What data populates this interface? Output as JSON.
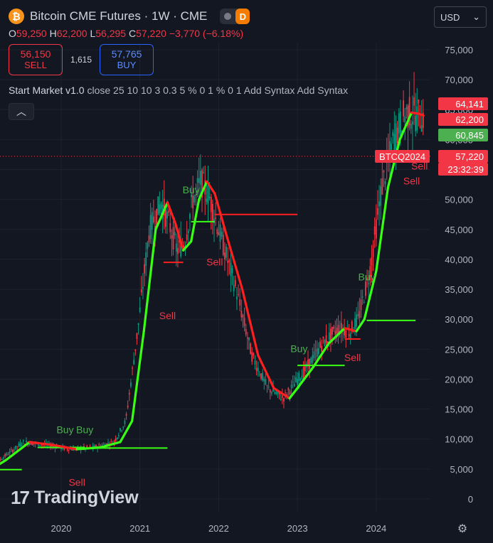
{
  "header": {
    "icon_letter": "₿",
    "title": "Bitcoin CME Futures · 1W · CME",
    "toggle_letter": "D"
  },
  "ohlc": {
    "o_label": "O",
    "o_value": "59,250",
    "h_label": "H",
    "h_value": "62,200",
    "l_label": "L",
    "l_value": "56,295",
    "c_label": "C",
    "c_value": "57,220",
    "change": "−3,770 (−6.18%)"
  },
  "trade": {
    "sell_price": "56,150",
    "sell_label": "SELL",
    "spread": "1,615",
    "buy_price": "57,765",
    "buy_label": "BUY"
  },
  "indicator": {
    "name": "Start Market v1.0",
    "params": "close 25 10 10 3 0.3 5 % 0 1 % 0 1 Add Syntax Add Syntax"
  },
  "currency": {
    "label": "USD",
    "chevron": "⌄"
  },
  "price_tags": [
    {
      "text": "64,141",
      "color": "#f23645"
    },
    {
      "text": "62,200",
      "color": "#f23645"
    },
    {
      "text": "60,845",
      "color": "#4caf50"
    },
    {
      "text": "57,220",
      "color": "#f23645"
    },
    {
      "text": "23:32:39",
      "color": "#f23645"
    }
  ],
  "symbol_tag": {
    "text": "BTCQ2024",
    "color": "#f23645"
  },
  "logo": {
    "mark": "17",
    "text": "TradingView"
  },
  "colors": {
    "up": "#089981",
    "down": "#f23645",
    "trend_up": "#39ff14",
    "trend_down": "#ff1f1f",
    "buy_text": "#4caf50",
    "sell_text": "#f23645"
  },
  "chart_data": {
    "type": "line",
    "y_ticks": [
      "75,000",
      "70,000",
      "65,000",
      "60,000",
      "55,000",
      "50,000",
      "45,000",
      "40,000",
      "35,000",
      "30,000",
      "25,000",
      "20,000",
      "15,000",
      "10,000",
      "5,000",
      "0"
    ],
    "ylim": [
      0,
      75000
    ],
    "x_ticks": [
      "2020",
      "2021",
      "2022",
      "2023",
      "2024"
    ],
    "series": [
      {
        "color": "#39ff14",
        "x": [
          2019.0,
          2019.3,
          2019.6,
          2019.9,
          2020.2,
          2020.5,
          2020.75,
          2020.9,
          2021.05,
          2021.2,
          2021.35,
          2021.45,
          2021.55,
          2021.65,
          2021.75,
          2021.85,
          2021.95,
          2022.1,
          2022.3,
          2022.5,
          2022.7,
          2022.9,
          2023.0,
          2023.2,
          2023.4,
          2023.6,
          2023.75,
          2023.85,
          2024.0,
          2024.15,
          2024.3,
          2024.45,
          2024.55,
          2024.6
        ],
        "y": [
          4000,
          6500,
          9500,
          9000,
          8300,
          8600,
          9500,
          13000,
          28000,
          45000,
          49500,
          46000,
          41500,
          43000,
          50000,
          53000,
          51000,
          44000,
          35000,
          24000,
          18500,
          16800,
          18500,
          22000,
          26000,
          28500,
          28000,
          30000,
          38000,
          52000,
          60000,
          64500,
          64300,
          64000
        ]
      }
    ],
    "annotations": [
      {
        "text": "Buy",
        "x": 2020.05,
        "y": 11000
      },
      {
        "text": "Buy",
        "x": 2020.3,
        "y": 11000
      },
      {
        "text": "Sell",
        "x": 2020.2,
        "y": 2200
      },
      {
        "text": "Buy",
        "x": 2021.65,
        "y": 51000
      },
      {
        "text": "Sell",
        "x": 2021.35,
        "y": 30000
      },
      {
        "text": "Sell",
        "x": 2021.95,
        "y": 39000
      },
      {
        "text": "Buy",
        "x": 2023.02,
        "y": 24500
      },
      {
        "text": "Sell",
        "x": 2023.7,
        "y": 23000
      },
      {
        "text": "Buy",
        "x": 2023.88,
        "y": 36500
      },
      {
        "text": "Sell",
        "x": 2024.45,
        "y": 52500
      },
      {
        "text": "Sell",
        "x": 2024.55,
        "y": 55000
      }
    ]
  }
}
